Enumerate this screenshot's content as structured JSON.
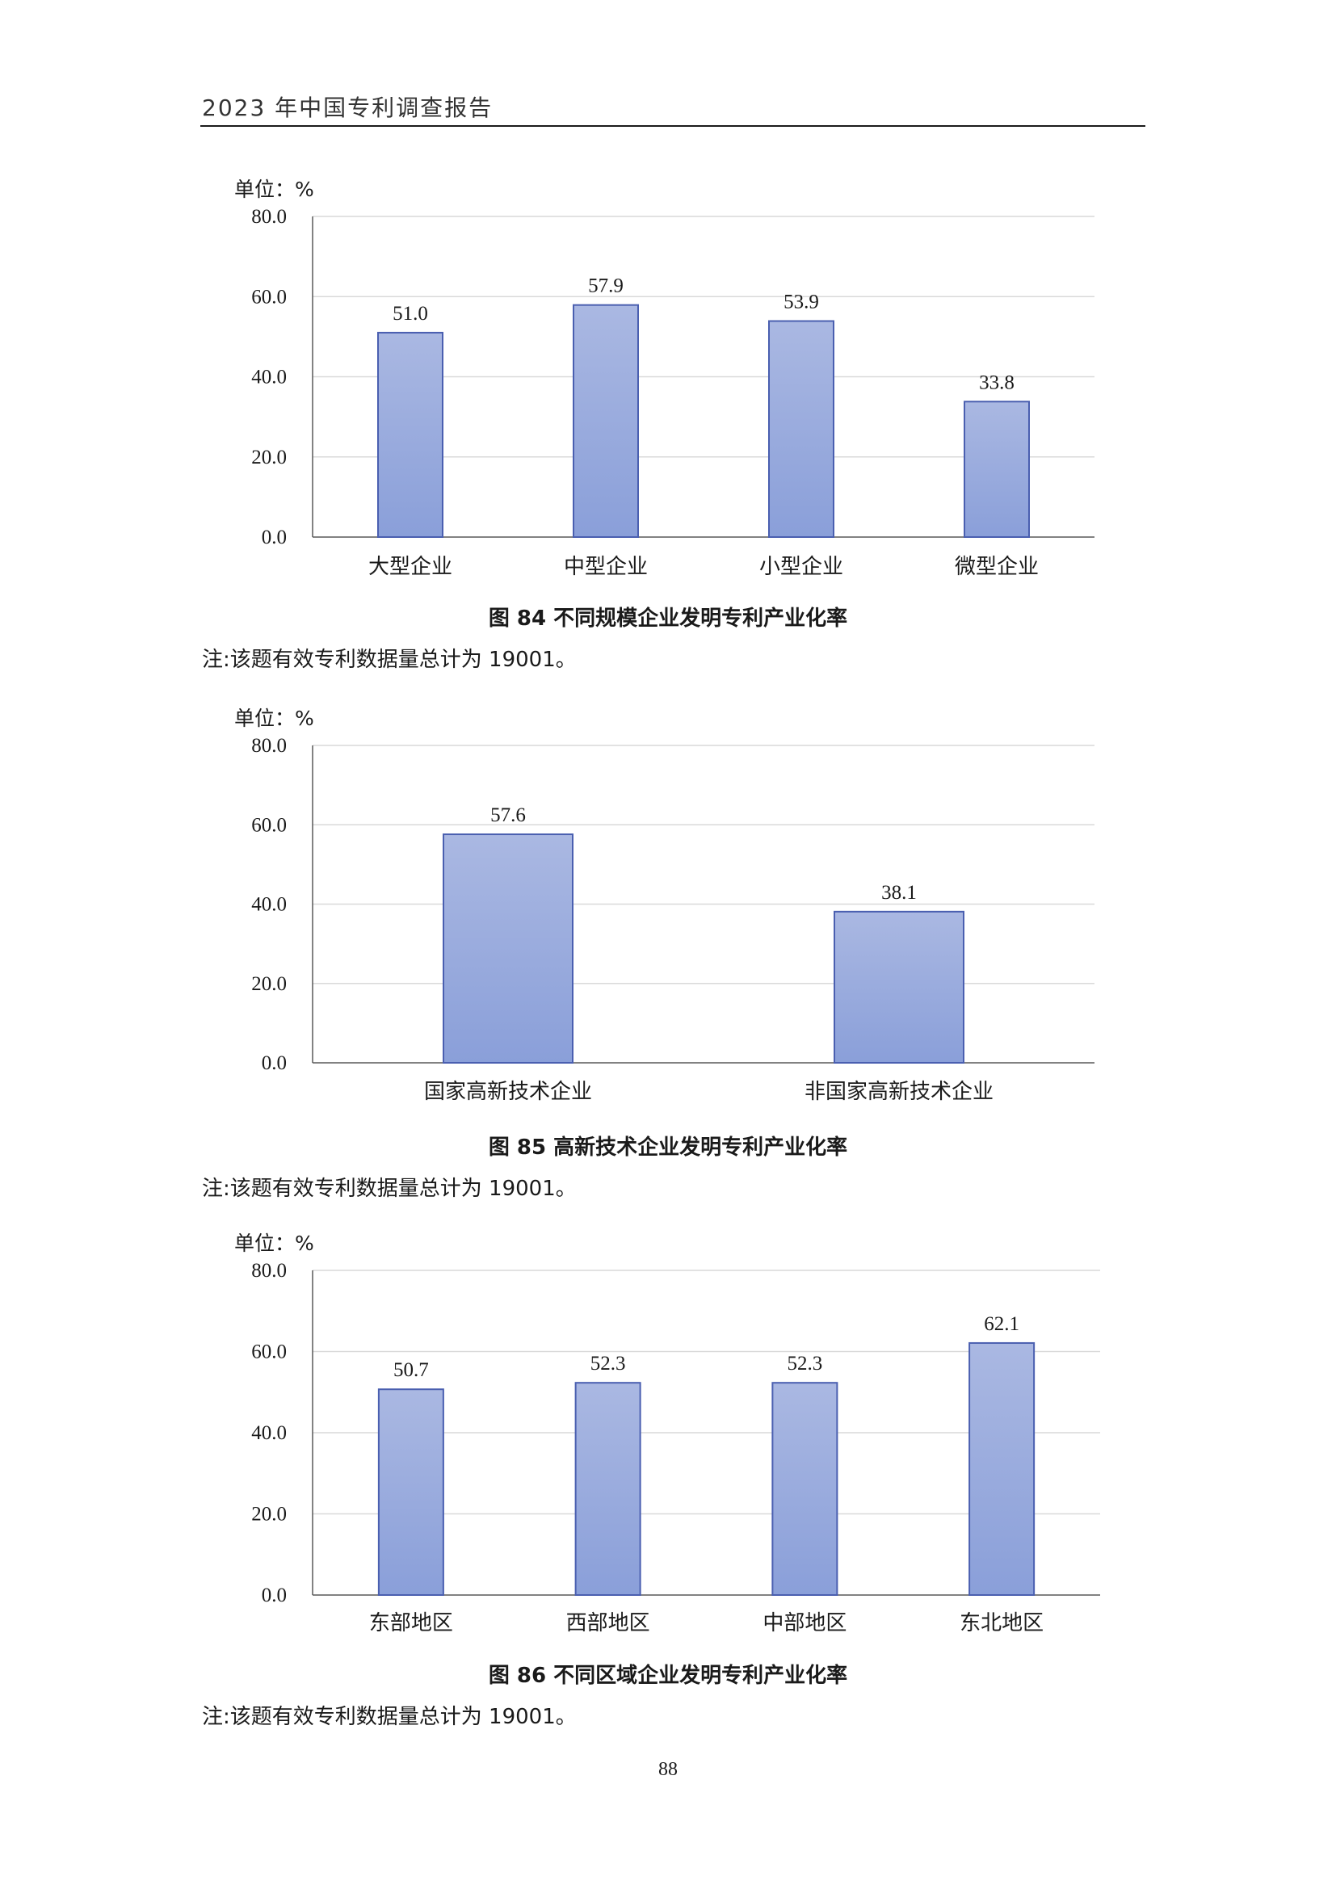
{
  "header": {
    "title": "2023 年中国专利调查报告"
  },
  "charts": [
    {
      "unit_label": "单位：%",
      "caption": "图 84  不同规模企业发明专利产业化率",
      "note": "注:该题有效专利数据量总计为 19001。"
    },
    {
      "unit_label": "单位：%",
      "caption": "图 85  高新技术企业发明专利产业化率",
      "note": "注:该题有效专利数据量总计为 19001。"
    },
    {
      "unit_label": "单位：%",
      "caption": "图 86  不同区域企业发明专利产业化率",
      "note": "注:该题有效专利数据量总计为 19001。"
    }
  ],
  "chart_data": [
    {
      "type": "bar",
      "title": "图 84  不同规模企业发明专利产业化率",
      "ylabel": "单位：%",
      "categories": [
        "大型企业",
        "中型企业",
        "小型企业",
        "微型企业"
      ],
      "values": [
        51.0,
        57.9,
        53.9,
        33.8
      ],
      "value_labels": [
        "51.0",
        "57.9",
        "53.9",
        "33.8"
      ],
      "ylim": [
        0,
        80
      ],
      "yticks": [
        "0.0",
        "20.0",
        "40.0",
        "60.0",
        "80.0"
      ],
      "grid": true,
      "bar_color_top": "#aab8e2",
      "bar_color_bottom": "#8a9fd9",
      "bar_border": "#4a5fb0"
    },
    {
      "type": "bar",
      "title": "图 85  高新技术企业发明专利产业化率",
      "ylabel": "单位：%",
      "categories": [
        "国家高新技术企业",
        "非国家高新技术企业"
      ],
      "values": [
        57.6,
        38.1
      ],
      "value_labels": [
        "57.6",
        "38.1"
      ],
      "ylim": [
        0,
        80
      ],
      "yticks": [
        "0.0",
        "20.0",
        "40.0",
        "60.0",
        "80.0"
      ],
      "grid": true,
      "bar_color_top": "#aab8e2",
      "bar_color_bottom": "#8a9fd9",
      "bar_border": "#4a5fb0"
    },
    {
      "type": "bar",
      "title": "图 86  不同区域企业发明专利产业化率",
      "ylabel": "单位：%",
      "categories": [
        "东部地区",
        "西部地区",
        "中部地区",
        "东北地区"
      ],
      "values": [
        50.7,
        52.3,
        52.3,
        62.1
      ],
      "value_labels": [
        "50.7",
        "52.3",
        "52.3",
        "62.1"
      ],
      "ylim": [
        0,
        80
      ],
      "yticks": [
        "0.0",
        "20.0",
        "40.0",
        "60.0",
        "80.0"
      ],
      "grid": true,
      "bar_color_top": "#aab8e2",
      "bar_color_bottom": "#8a9fd9",
      "bar_border": "#4a5fb0"
    }
  ],
  "page": {
    "number": "88"
  }
}
